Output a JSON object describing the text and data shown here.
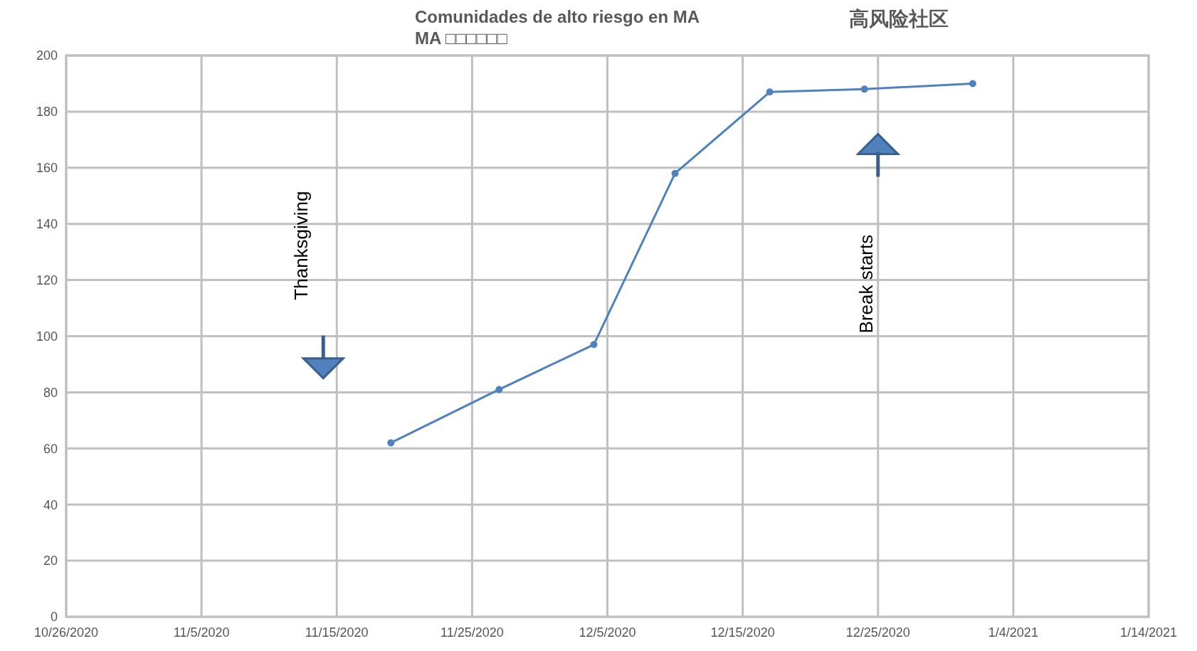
{
  "chart_data": {
    "type": "line",
    "title": "Comunidades de alto riesgo en MA",
    "subtitle": "MA □□□□□□",
    "x": [
      "2020-11-19",
      "2020-11-27",
      "2020-12-04",
      "2020-12-10",
      "2020-12-17",
      "2020-12-24",
      "2021-01-01"
    ],
    "series": [
      {
        "color": "#4f81bd",
        "values": [
          62,
          81,
          97,
          158,
          187,
          188,
          190
        ]
      }
    ],
    "xlim": [
      "2020-10-26",
      "2021-01-14"
    ],
    "xticks": [
      {
        "value": "2020-10-26",
        "label": "10/26/2020"
      },
      {
        "value": "2020-11-05",
        "label": "11/5/2020"
      },
      {
        "value": "2020-11-15",
        "label": "11/15/2020"
      },
      {
        "value": "2020-11-25",
        "label": "11/25/2020"
      },
      {
        "value": "2020-12-05",
        "label": "12/5/2020"
      },
      {
        "value": "2020-12-15",
        "label": "12/15/2020"
      },
      {
        "value": "2020-12-25",
        "label": "12/25/2020"
      },
      {
        "value": "2021-01-04",
        "label": "1/4/2021"
      },
      {
        "value": "2021-01-14",
        "label": "1/14/2021"
      }
    ],
    "ylim": [
      0,
      200
    ],
    "yticks": [
      0,
      20,
      40,
      60,
      80,
      100,
      120,
      140,
      160,
      180,
      200
    ],
    "grid": true,
    "marker": "circle",
    "line_style": "solid",
    "annotations": [
      "高风险社区",
      "Thanksgiving",
      "Break starts"
    ]
  }
}
